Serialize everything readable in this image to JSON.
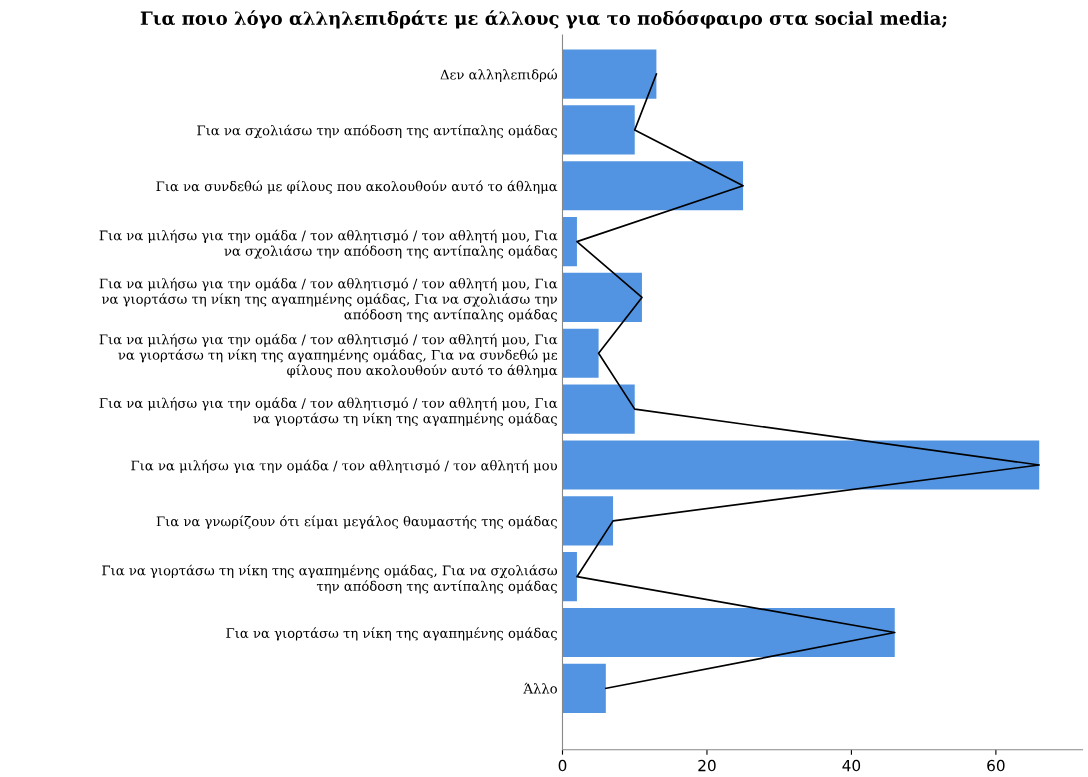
{
  "chart_data": {
    "type": "bar",
    "orientation": "horizontal",
    "title": "Για ποιο λόγο αλληλεπιδράτε με άλλους για το ποδόσφαιρο στα social media;",
    "categories": [
      "Δεν αλληλεπιδρώ",
      "Για να σχολιάσω την απόδοση της αντίπαλης ομάδας",
      "Για να συνδεθώ με φίλους που ακολουθούν αυτό το άθλημα",
      "Για να μιλήσω για την ομάδα / τον αθλητισμό / τον αθλητή μου, Για\nνα σχολιάσω την απόδοση της αντίπαλης ομάδας",
      "Για να μιλήσω για την ομάδα / τον αθλητισμό / τον αθλητή μου, Για\nνα γιορτάσω τη νίκη της αγαπημένης ομάδας, Για να σχολιάσω την\nαπόδοση της αντίπαλης ομάδας",
      "Για να μιλήσω για την ομάδα / τον αθλητισμό / τον αθλητή μου, Για\nνα γιορτάσω τη νίκη της αγαπημένης ομάδας, Για να συνδεθώ με\nφίλους που ακολουθούν αυτό το άθλημα",
      "Για να μιλήσω για την ομάδα / τον αθλητισμό / τον αθλητή μου, Για\nνα γιορτάσω τη νίκη της αγαπημένης ομάδας",
      "Για να μιλήσω για την ομάδα / τον αθλητισμό / τον αθλητή μου",
      "Για να γνωρίζουν ότι είμαι μεγάλος θαυμαστής της ομάδας",
      "Για να γιορτάσω τη νίκη της αγαπημένης ομάδας, Για να σχολιάσω\nτην απόδοση της αντίπαλης ομάδας",
      "Για να γιορτάσω τη νίκη της αγαπημένης ομάδας",
      "Άλλο"
    ],
    "series": [
      {
        "color": "#5294e2",
        "values": [
          13,
          10,
          25,
          2,
          11,
          5,
          10,
          66,
          7,
          2,
          46,
          6
        ]
      },
      {
        "type": "line",
        "color": "#000000",
        "values": [
          13,
          10,
          25,
          2,
          11,
          5,
          10,
          66,
          7,
          2,
          46,
          6
        ]
      }
    ],
    "xlim": [
      0,
      72
    ],
    "xticks": [
      0,
      20,
      40,
      60
    ],
    "grid": false,
    "marker": "none"
  }
}
